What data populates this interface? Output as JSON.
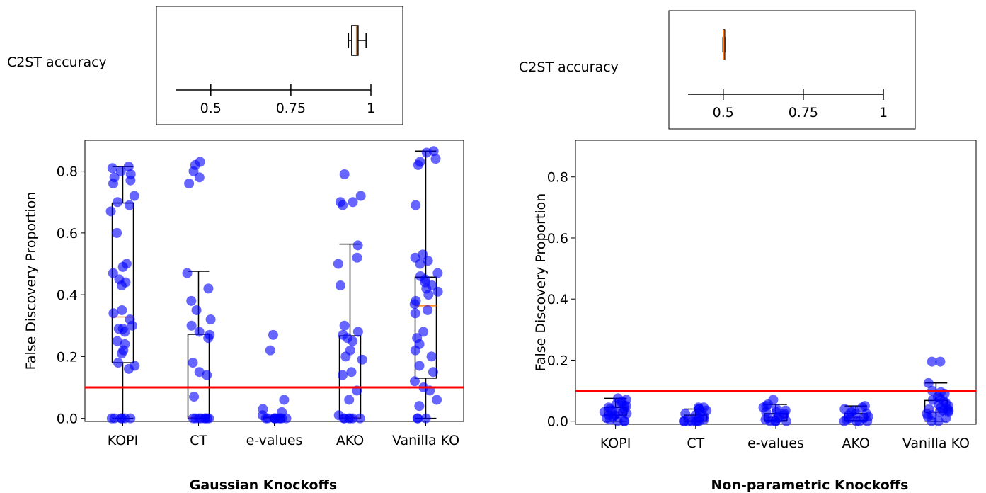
{
  "chart_data": [
    {
      "type": "box",
      "panel": "gaussian",
      "subtitle": "Gaussian Knockoffs",
      "ylabel": "False Discovery Proportion",
      "ylim": [
        -0.01,
        0.9
      ],
      "yticks": [
        0.0,
        0.2,
        0.4,
        0.6,
        0.8
      ],
      "ytick_labels": [
        "0.0",
        "0.2",
        "0.4",
        "0.6",
        "0.8"
      ],
      "categories": [
        "KOPI",
        "CT",
        "e-values",
        "AKO",
        "Vanilla KO"
      ],
      "threshold": 0.1,
      "threshold_color": "#ff0000",
      "box_color": "#000000",
      "median_color": "#ff7f0e",
      "point_color": "#0000ff",
      "boxes": [
        {
          "q1": 0.18,
          "median": 0.328,
          "q3": 0.697,
          "whisker_low": 0.0,
          "whisker_high": 0.815
        },
        {
          "q1": 0.0,
          "median": 0.002,
          "q3": 0.272,
          "whisker_low": 0.0,
          "whisker_high": 0.476
        },
        {
          "q1": 0.0,
          "median": 0.0,
          "q3": 0.003,
          "whisker_low": 0.0,
          "whisker_high": 0.003
        },
        {
          "q1": 0.0,
          "median": 0.002,
          "q3": 0.267,
          "whisker_low": 0.0,
          "whisker_high": 0.564
        },
        {
          "q1": 0.13,
          "median": 0.364,
          "q3": 0.457,
          "whisker_low": 0.0,
          "whisker_high": 0.865
        }
      ],
      "points": [
        [
          0.815,
          0.81,
          0.8,
          0.79,
          0.78,
          0.77,
          0.76,
          0.72,
          0.7,
          0.69,
          0.67,
          0.6,
          0.5,
          0.49,
          0.47,
          0.45,
          0.44,
          0.43,
          0.35,
          0.34,
          0.32,
          0.3,
          0.29,
          0.29,
          0.28,
          0.25,
          0.24,
          0.22,
          0.21,
          0.18,
          0.17,
          0.16,
          0.0,
          0.0,
          0.0,
          0.0,
          0.0,
          0.0
        ],
        [
          0.83,
          0.82,
          0.8,
          0.78,
          0.76,
          0.47,
          0.42,
          0.38,
          0.35,
          0.32,
          0.3,
          0.28,
          0.27,
          0.26,
          0.18,
          0.15,
          0.14,
          0.07,
          0.0,
          0.0,
          0.0,
          0.0,
          0.0,
          0.0,
          0.0,
          0.0
        ],
        [
          0.27,
          0.22,
          0.06,
          0.03,
          0.02,
          0.01,
          0.0,
          0.0,
          0.0,
          0.0,
          0.0,
          0.0,
          0.0,
          0.0,
          0.0,
          0.0
        ],
        [
          0.79,
          0.72,
          0.7,
          0.7,
          0.69,
          0.56,
          0.52,
          0.5,
          0.43,
          0.3,
          0.28,
          0.27,
          0.26,
          0.25,
          0.22,
          0.2,
          0.19,
          0.15,
          0.14,
          0.09,
          0.06,
          0.01,
          0.0,
          0.0,
          0.0,
          0.0,
          0.0,
          0.0
        ],
        [
          0.865,
          0.86,
          0.84,
          0.83,
          0.82,
          0.69,
          0.53,
          0.52,
          0.51,
          0.5,
          0.47,
          0.46,
          0.45,
          0.44,
          0.43,
          0.42,
          0.41,
          0.4,
          0.38,
          0.37,
          0.35,
          0.34,
          0.28,
          0.26,
          0.24,
          0.22,
          0.2,
          0.17,
          0.15,
          0.12,
          0.1,
          0.09,
          0.06,
          0.04,
          0.0,
          0.0,
          0.0
        ]
      ],
      "c2st": {
        "label": "C2ST accuracy",
        "xlim": [
          0.39,
          1.0
        ],
        "xticks": [
          0.5,
          0.75,
          1.0
        ],
        "xtick_labels": [
          "0.5",
          "0.75",
          "1"
        ],
        "box": {
          "q1": 0.94,
          "median": 0.955,
          "q3": 0.96,
          "whisker_low": 0.93,
          "whisker_high": 0.985
        }
      }
    },
    {
      "type": "box",
      "panel": "nonparametric",
      "subtitle": "Non-parametric Knockoffs",
      "ylabel": "False Discovery Proportion",
      "ylim": [
        -0.01,
        0.92
      ],
      "yticks": [
        0.0,
        0.2,
        0.4,
        0.6,
        0.8
      ],
      "ytick_labels": [
        "0.0",
        "0.2",
        "0.4",
        "0.6",
        "0.8"
      ],
      "categories": [
        "KOPI",
        "CT",
        "e-values",
        "AKO",
        "Vanilla KO"
      ],
      "threshold": 0.1,
      "threshold_color": "#ff0000",
      "box_color": "#000000",
      "median_color": "#ff7f0e",
      "point_color": "#0000ff",
      "boxes": [
        {
          "q1": 0.02,
          "median": 0.03,
          "q3": 0.045,
          "whisker_low": 0.0,
          "whisker_high": 0.075
        },
        {
          "q1": 0.0,
          "median": 0.002,
          "q3": 0.02,
          "whisker_low": 0.0,
          "whisker_high": 0.04
        },
        {
          "q1": 0.002,
          "median": 0.012,
          "q3": 0.025,
          "whisker_low": 0.0,
          "whisker_high": 0.055
        },
        {
          "q1": 0.002,
          "median": 0.012,
          "q3": 0.025,
          "whisker_low": 0.0,
          "whisker_high": 0.05
        },
        {
          "q1": 0.03,
          "median": 0.04,
          "q3": 0.068,
          "whisker_low": 0.0,
          "whisker_high": 0.125
        }
      ],
      "points": [
        [
          0.075,
          0.07,
          0.065,
          0.06,
          0.055,
          0.05,
          0.05,
          0.045,
          0.04,
          0.04,
          0.035,
          0.03,
          0.03,
          0.025,
          0.025,
          0.02,
          0.02,
          0.015,
          0.01,
          0.005,
          0.0,
          0.0,
          0.0
        ],
        [
          0.045,
          0.045,
          0.04,
          0.04,
          0.035,
          0.03,
          0.025,
          0.02,
          0.015,
          0.01,
          0.005,
          0.0,
          0.0,
          0.0,
          0.0,
          0.0,
          0.0,
          0.0
        ],
        [
          0.07,
          0.055,
          0.05,
          0.045,
          0.04,
          0.035,
          0.03,
          0.03,
          0.025,
          0.02,
          0.015,
          0.01,
          0.01,
          0.005,
          0.0,
          0.0,
          0.0,
          0.0
        ],
        [
          0.05,
          0.045,
          0.04,
          0.035,
          0.03,
          0.025,
          0.025,
          0.02,
          0.015,
          0.01,
          0.01,
          0.005,
          0.0,
          0.0,
          0.0,
          0.0
        ],
        [
          0.195,
          0.195,
          0.125,
          0.1,
          0.095,
          0.09,
          0.08,
          0.075,
          0.07,
          0.065,
          0.06,
          0.055,
          0.05,
          0.045,
          0.04,
          0.04,
          0.035,
          0.035,
          0.03,
          0.03,
          0.025,
          0.02,
          0.015,
          0.01,
          0.0,
          0.0
        ]
      ],
      "c2st": {
        "label": "C2ST accuracy",
        "xlim": [
          0.39,
          1.0
        ],
        "xticks": [
          0.5,
          0.75,
          1.0
        ],
        "xtick_labels": [
          "0.5",
          "0.75",
          "1"
        ],
        "box": {
          "q1": 0.5,
          "median": 0.502,
          "q3": 0.504,
          "whisker_low": 0.499,
          "whisker_high": 0.505
        }
      }
    }
  ]
}
